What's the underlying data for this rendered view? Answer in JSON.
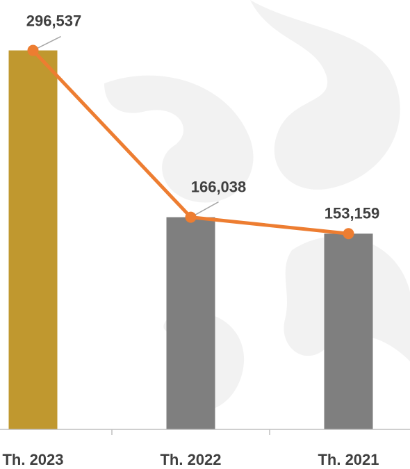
{
  "chart_data": {
    "type": "bar",
    "categories": [
      "Th. 2023",
      "Th. 2022",
      "Th. 2021"
    ],
    "values": [
      296537,
      166038,
      153159
    ],
    "value_labels": [
      "296,537",
      "166,038",
      "153,159"
    ],
    "line_overlay": true,
    "ylim": [
      0,
      330000
    ],
    "grid": false,
    "legend": "none",
    "colors": {
      "highlight_bar": "#c0982f",
      "bar": "#7f7f7f",
      "line": "#ed7d31",
      "axis": "#bfbfbf",
      "leader": "#a6a6a6",
      "label": "#3f3f3f",
      "watermark": "#f2f2f2"
    }
  }
}
